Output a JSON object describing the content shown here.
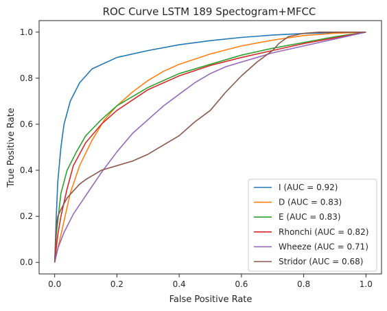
{
  "chart_data": {
    "type": "line",
    "title": "ROC Curve LSTM 189 Spectogram+MFCC",
    "xlabel": "False Positive Rate",
    "ylabel": "True Positive Rate",
    "xlim": [
      -0.05,
      1.05
    ],
    "ylim": [
      -0.05,
      1.05
    ],
    "xticks": [
      "0.0",
      "0.2",
      "0.4",
      "0.6",
      "0.8",
      "1.0"
    ],
    "yticks": [
      "0.0",
      "0.2",
      "0.4",
      "0.6",
      "0.8",
      "1.0"
    ],
    "grid": false,
    "legend_position": "lower-right",
    "series": [
      {
        "name": "I (AUC = 0.92)",
        "color": "#1f77b4",
        "points": [
          [
            0,
            0
          ],
          [
            0.005,
            0.2
          ],
          [
            0.01,
            0.35
          ],
          [
            0.02,
            0.5
          ],
          [
            0.03,
            0.6
          ],
          [
            0.05,
            0.7
          ],
          [
            0.08,
            0.78
          ],
          [
            0.12,
            0.84
          ],
          [
            0.2,
            0.89
          ],
          [
            0.3,
            0.92
          ],
          [
            0.4,
            0.945
          ],
          [
            0.5,
            0.963
          ],
          [
            0.6,
            0.977
          ],
          [
            0.7,
            0.987
          ],
          [
            0.8,
            0.994
          ],
          [
            0.9,
            0.998
          ],
          [
            1,
            1
          ]
        ]
      },
      {
        "name": "D (AUC = 0.83)",
        "color": "#ff7f0e",
        "points": [
          [
            0,
            0
          ],
          [
            0.02,
            0.12
          ],
          [
            0.05,
            0.3
          ],
          [
            0.08,
            0.42
          ],
          [
            0.12,
            0.53
          ],
          [
            0.16,
            0.62
          ],
          [
            0.2,
            0.68
          ],
          [
            0.25,
            0.74
          ],
          [
            0.3,
            0.79
          ],
          [
            0.35,
            0.83
          ],
          [
            0.4,
            0.86
          ],
          [
            0.5,
            0.905
          ],
          [
            0.6,
            0.94
          ],
          [
            0.7,
            0.965
          ],
          [
            0.8,
            0.985
          ],
          [
            0.9,
            0.995
          ],
          [
            1,
            1
          ]
        ]
      },
      {
        "name": "E (AUC = 0.83)",
        "color": "#2ca02c",
        "points": [
          [
            0,
            0
          ],
          [
            0.005,
            0.12
          ],
          [
            0.02,
            0.3
          ],
          [
            0.04,
            0.4
          ],
          [
            0.07,
            0.48
          ],
          [
            0.1,
            0.55
          ],
          [
            0.15,
            0.62
          ],
          [
            0.2,
            0.68
          ],
          [
            0.3,
            0.76
          ],
          [
            0.4,
            0.82
          ],
          [
            0.5,
            0.86
          ],
          [
            0.6,
            0.9
          ],
          [
            0.7,
            0.93
          ],
          [
            0.8,
            0.955
          ],
          [
            0.9,
            0.98
          ],
          [
            1,
            1
          ]
        ]
      },
      {
        "name": "Rhonchi (AUC = 0.82)",
        "color": "#d62728",
        "points": [
          [
            0,
            0
          ],
          [
            0.01,
            0.12
          ],
          [
            0.02,
            0.2
          ],
          [
            0.04,
            0.32
          ],
          [
            0.06,
            0.42
          ],
          [
            0.1,
            0.52
          ],
          [
            0.15,
            0.6
          ],
          [
            0.2,
            0.66
          ],
          [
            0.3,
            0.75
          ],
          [
            0.4,
            0.81
          ],
          [
            0.5,
            0.855
          ],
          [
            0.6,
            0.89
          ],
          [
            0.7,
            0.92
          ],
          [
            0.8,
            0.95
          ],
          [
            0.9,
            0.975
          ],
          [
            1,
            1
          ]
        ]
      },
      {
        "name": "Wheeze (AUC = 0.71)",
        "color": "#9467bd",
        "points": [
          [
            0,
            0
          ],
          [
            0.01,
            0.06
          ],
          [
            0.03,
            0.13
          ],
          [
            0.06,
            0.21
          ],
          [
            0.1,
            0.29
          ],
          [
            0.15,
            0.39
          ],
          [
            0.2,
            0.48
          ],
          [
            0.25,
            0.56
          ],
          [
            0.3,
            0.62
          ],
          [
            0.35,
            0.68
          ],
          [
            0.4,
            0.73
          ],
          [
            0.45,
            0.78
          ],
          [
            0.5,
            0.82
          ],
          [
            0.55,
            0.85
          ],
          [
            0.6,
            0.87
          ],
          [
            0.7,
            0.91
          ],
          [
            0.8,
            0.94
          ],
          [
            0.9,
            0.97
          ],
          [
            1,
            1
          ]
        ]
      },
      {
        "name": "Stridor (AUC = 0.68)",
        "color": "#8c564b",
        "points": [
          [
            0,
            0
          ],
          [
            0.005,
            0.15
          ],
          [
            0.01,
            0.2
          ],
          [
            0.02,
            0.23
          ],
          [
            0.04,
            0.28
          ],
          [
            0.06,
            0.31
          ],
          [
            0.08,
            0.34
          ],
          [
            0.1,
            0.36
          ],
          [
            0.15,
            0.4
          ],
          [
            0.2,
            0.42
          ],
          [
            0.25,
            0.44
          ],
          [
            0.3,
            0.47
          ],
          [
            0.35,
            0.51
          ],
          [
            0.4,
            0.55
          ],
          [
            0.45,
            0.61
          ],
          [
            0.5,
            0.66
          ],
          [
            0.55,
            0.74
          ],
          [
            0.6,
            0.81
          ],
          [
            0.65,
            0.87
          ],
          [
            0.7,
            0.92
          ],
          [
            0.72,
            0.95
          ],
          [
            0.75,
            0.98
          ],
          [
            0.8,
            0.995
          ],
          [
            0.85,
            1
          ],
          [
            1,
            1
          ]
        ]
      }
    ]
  }
}
